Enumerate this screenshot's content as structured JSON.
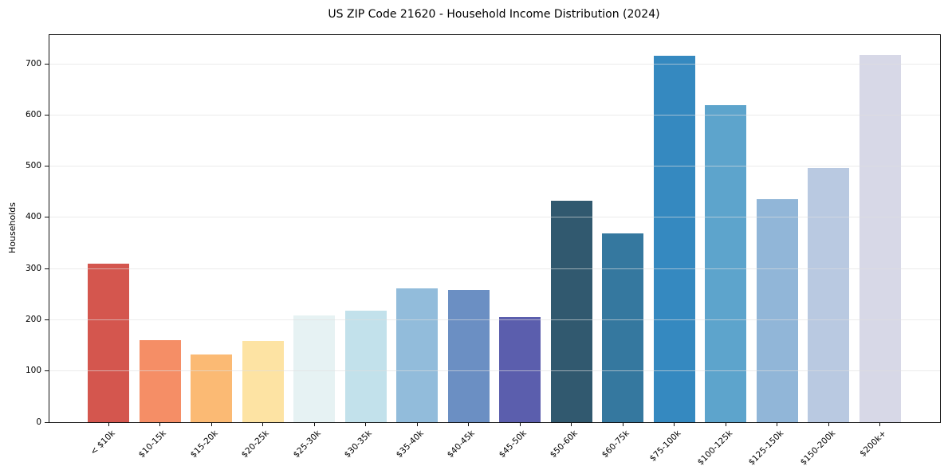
{
  "chart_data": {
    "type": "bar",
    "title": "US ZIP Code 21620 - Household Income Distribution (2024)",
    "ylabel": "Households",
    "xlabel": "",
    "categories": [
      "< $10k",
      "$10-15k",
      "$15-20k",
      "$20-25k",
      "$25-30k",
      "$30-35k",
      "$35-40k",
      "$40-45k",
      "$45-50k",
      "$50-60k",
      "$60-75k",
      "$75-100k",
      "$100-125k",
      "$125-150k",
      "$150-200k",
      "$200k+"
    ],
    "values": [
      310,
      161,
      132,
      159,
      208,
      218,
      262,
      259,
      206,
      432,
      368,
      716,
      619,
      435,
      496,
      717
    ],
    "bar_colors": [
      "#d4564e",
      "#f58e66",
      "#fbba74",
      "#fde3a3",
      "#e6f2f3",
      "#c2e1eb",
      "#92bcdb",
      "#6b8fc3",
      "#5b5ead",
      "#31596f",
      "#35789f",
      "#3589c0",
      "#5da4cc",
      "#91b6d8",
      "#b9c9e1",
      "#d7d8e7"
    ],
    "yticks": [
      0,
      100,
      200,
      300,
      400,
      500,
      600,
      700
    ],
    "ylim": [
      0,
      756
    ],
    "x_tick_rotation": 45,
    "grid": "horizontal-light-gray-over-bars",
    "legend": "none"
  }
}
